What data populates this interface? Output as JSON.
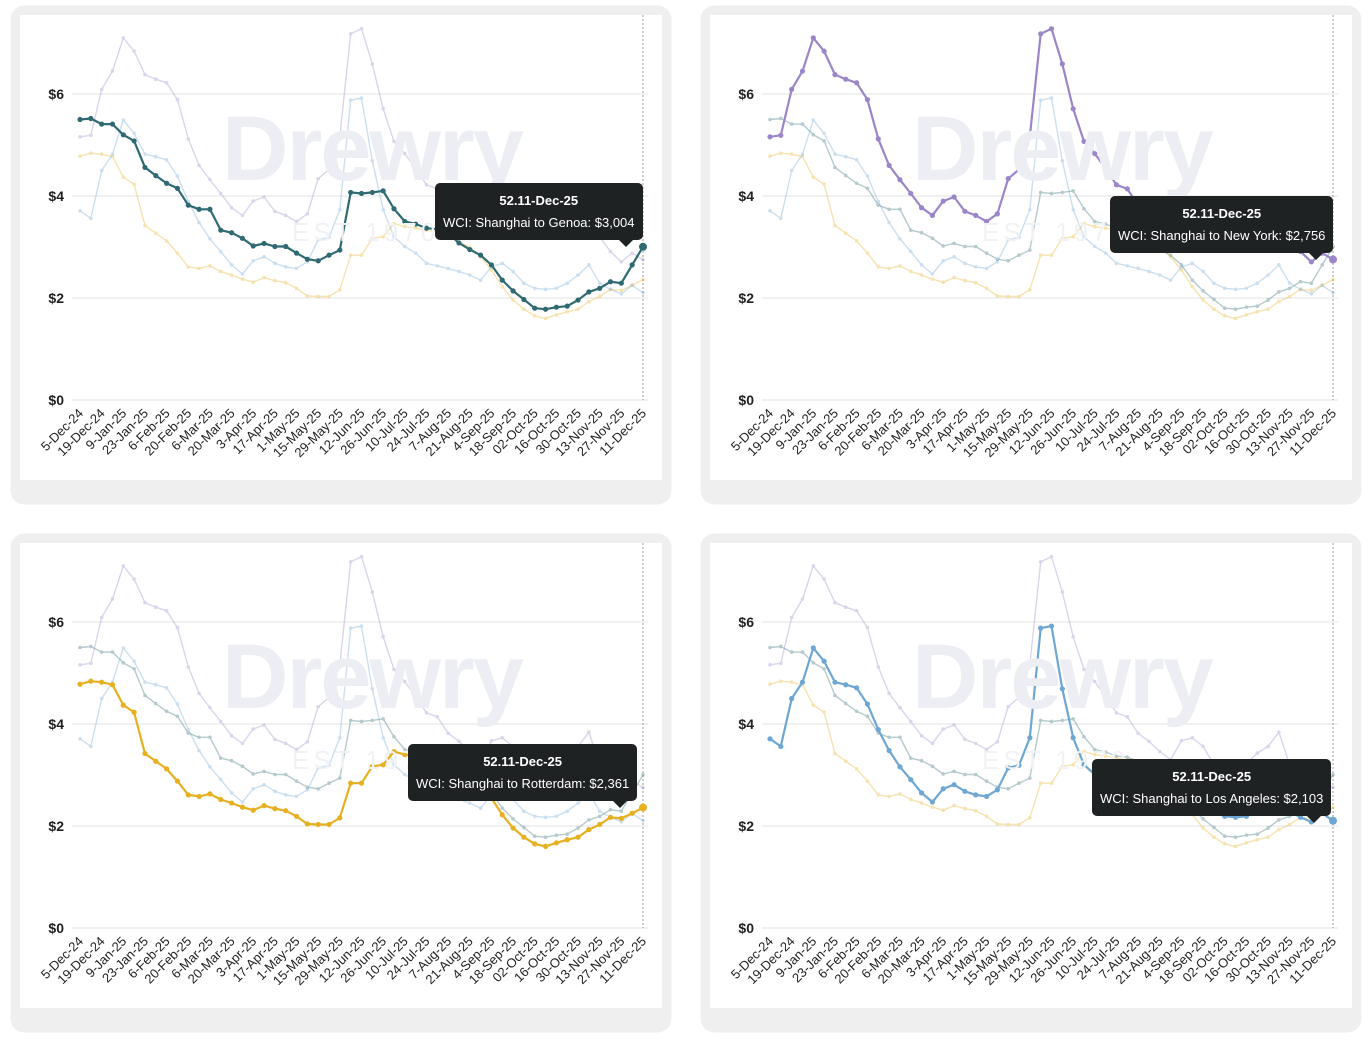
{
  "watermark": {
    "logo_text": "Drewry",
    "est_text": "EST 1970"
  },
  "chart_data": {
    "type": "line",
    "y_ticks": [
      0,
      2,
      4,
      6
    ],
    "y_tick_labels": [
      "$0",
      "$2",
      "$4",
      "$6"
    ],
    "ylim": [
      0,
      7.5
    ],
    "grid": true,
    "x_tick_labels": [
      "5-Dec-24",
      "19-Dec-24",
      "9-Jan-25",
      "23-Jan-25",
      "6-Feb-25",
      "20-Feb-25",
      "6-Mar-25",
      "20-Mar-25",
      "3-Apr-25",
      "17-Apr-25",
      "1-May-25",
      "15-May-25",
      "29-May-25",
      "12-Jun-25",
      "26-Jun-25",
      "10-Jul-25",
      "24-Jul-25",
      "7-Aug-25",
      "21-Aug-25",
      "4-Sep-25",
      "18-Sep-25",
      "02-Oct-25",
      "16-Oct-25",
      "30-Oct-25",
      "13-Nov-25",
      "27-Nov-25",
      "11-Dec-25"
    ],
    "x_tick_every": 2,
    "series": [
      {
        "name": "WCI: Shanghai to Genoa",
        "color": "#2f6a72",
        "unit": "USD thousands per 40ft",
        "values": [
          5.5,
          5.52,
          5.41,
          5.41,
          5.2,
          5.08,
          4.56,
          4.4,
          4.25,
          4.15,
          3.82,
          3.74,
          3.74,
          3.33,
          3.28,
          3.17,
          3.02,
          3.07,
          3.01,
          3.01,
          2.88,
          2.76,
          2.73,
          2.84,
          2.94,
          4.07,
          4.05,
          4.07,
          4.1,
          3.75,
          3.5,
          3.45,
          3.37,
          3.35,
          3.27,
          3.08,
          2.95,
          2.84,
          2.65,
          2.35,
          2.14,
          1.97,
          1.8,
          1.78,
          1.82,
          1.84,
          1.96,
          2.12,
          2.19,
          2.32,
          2.29,
          2.65,
          3.004
        ]
      },
      {
        "name": "WCI: Shanghai to New York",
        "color": "#9a86c8",
        "values": [
          5.16,
          5.19,
          6.09,
          6.45,
          7.1,
          6.84,
          6.38,
          6.29,
          6.22,
          5.89,
          5.12,
          4.6,
          4.32,
          4.05,
          3.77,
          3.62,
          3.9,
          3.98,
          3.7,
          3.62,
          3.5,
          3.65,
          4.34,
          4.52,
          5.16,
          7.18,
          7.28,
          6.59,
          5.71,
          5.07,
          4.83,
          4.54,
          4.22,
          4.14,
          3.82,
          3.66,
          3.46,
          3.3,
          3.67,
          3.73,
          3.56,
          3.2,
          3.2,
          3.19,
          3.22,
          3.43,
          3.56,
          3.84,
          3.2,
          2.91,
          2.71,
          2.88,
          2.756
        ]
      },
      {
        "name": "WCI: Shanghai to Rotterdam",
        "color": "#e6b021",
        "values": [
          4.78,
          4.84,
          4.82,
          4.77,
          4.37,
          4.23,
          3.42,
          3.27,
          3.12,
          2.88,
          2.61,
          2.58,
          2.63,
          2.52,
          2.45,
          2.37,
          2.31,
          2.4,
          2.34,
          2.3,
          2.19,
          2.04,
          2.03,
          2.03,
          2.16,
          2.84,
          2.84,
          3.17,
          3.2,
          3.46,
          3.4,
          3.37,
          3.33,
          3.3,
          3.27,
          3.1,
          3.0,
          2.81,
          2.55,
          2.22,
          1.96,
          1.78,
          1.65,
          1.6,
          1.67,
          1.73,
          1.78,
          1.93,
          2.03,
          2.17,
          2.15,
          2.25,
          2.361
        ]
      },
      {
        "name": "WCI: Shanghai to Los Angeles",
        "color": "#6ea6d4",
        "values": [
          3.71,
          3.56,
          4.5,
          4.82,
          5.49,
          5.23,
          4.82,
          4.77,
          4.71,
          4.39,
          3.89,
          3.48,
          3.16,
          2.91,
          2.65,
          2.47,
          2.73,
          2.81,
          2.68,
          2.61,
          2.58,
          2.71,
          3.14,
          3.19,
          3.73,
          5.88,
          5.92,
          4.69,
          3.73,
          3.2,
          3.01,
          2.88,
          2.68,
          2.63,
          2.58,
          2.52,
          2.45,
          2.35,
          2.61,
          2.68,
          2.52,
          2.29,
          2.19,
          2.17,
          2.19,
          2.29,
          2.45,
          2.65,
          2.29,
          2.17,
          2.08,
          2.25,
          2.103
        ]
      }
    ],
    "panels": [
      {
        "highlight": 0,
        "tooltip": {
          "title": "52.11-Dec-25",
          "label": "WCI: Shanghai to Genoa: $3,004"
        }
      },
      {
        "highlight": 1,
        "tooltip": {
          "title": "52.11-Dec-25",
          "label": "WCI: Shanghai to New York: $2,756"
        }
      },
      {
        "highlight": 2,
        "tooltip": {
          "title": "52.11-Dec-25",
          "label": "WCI: Shanghai to Rotterdam: $2,361"
        }
      },
      {
        "highlight": 3,
        "tooltip": {
          "title": "52.11-Dec-25",
          "label": "WCI: Shanghai to Los Angeles: $2,103"
        }
      }
    ]
  }
}
